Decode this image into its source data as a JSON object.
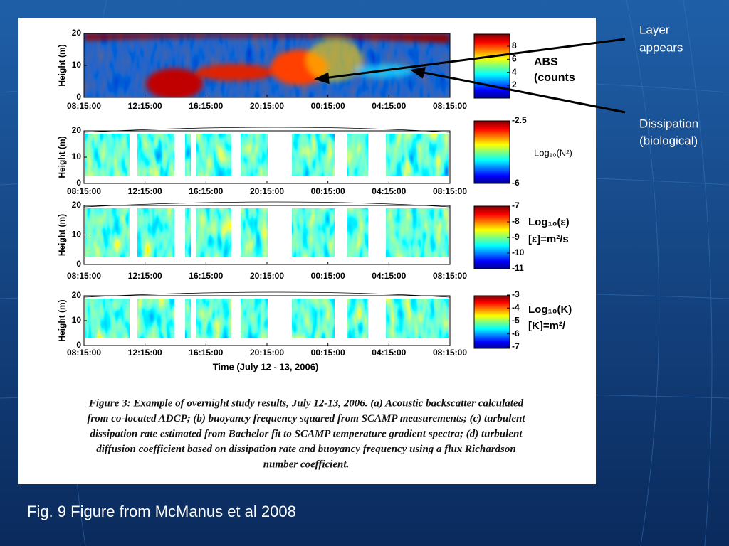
{
  "figure": {
    "panels": [
      {
        "ylabel": "Height (m)",
        "yticks": [
          0,
          10,
          20
        ],
        "xticks": [
          "08:15:00",
          "12:15:00",
          "16:15:00",
          "20:15:00",
          "00:15:00",
          "04:15:00",
          "08:15:00"
        ],
        "colorbar": {
          "ticks": [
            2,
            4,
            6,
            8
          ],
          "label": [
            "ABS",
            "(counts"
          ]
        }
      },
      {
        "ylabel": "Height (m)",
        "yticks": [
          0,
          10,
          20
        ],
        "xticks": [
          "08:15:00",
          "12:15:00",
          "16:15:00",
          "20:15:00",
          "00:15:00",
          "04:15:00",
          "08:15:00"
        ],
        "colorbar": {
          "ticks": [
            -6,
            -2.5
          ],
          "label": [
            "Log₁₀(N²)"
          ]
        }
      },
      {
        "ylabel": "Height (m)",
        "yticks": [
          0,
          10,
          20
        ],
        "xticks": [
          "08:15:00",
          "12:15:00",
          "16:15:00",
          "20:15:00",
          "00:15:00",
          "04:15:00",
          "08:15:00"
        ],
        "colorbar": {
          "ticks": [
            -11,
            -10,
            -9,
            -8,
            -7
          ],
          "label": [
            "Log₁₀(ε)",
            "[ε]=m²/s"
          ]
        }
      },
      {
        "ylabel": "Height (m)",
        "yticks": [
          0,
          10,
          20
        ],
        "xticks": [
          "08:15:00",
          "12:15:00",
          "16:15:00",
          "20:15:00",
          "00:15:00",
          "04:15:00",
          "08:15:00"
        ],
        "colorbar": {
          "ticks": [
            -7,
            -6,
            -5,
            -4,
            -3
          ],
          "label": [
            "Log₁₀(K)",
            "[K]=m²/"
          ]
        }
      }
    ],
    "xlabel": "Time (July 12 - 13, 2006)",
    "caption": [
      "Figure 3: Example of overnight study results, July 12-13, 2006.  (a) Acoustic backscatter calculated",
      "from co-located ADCP; (b) buoyancy frequency squared from SCAMP measurements; (c) turbulent",
      "dissipation rate estimated from Bachelor fit to SCAMP temperature gradient spectra; (d) turbulent",
      "diffusion coefficient based on dissipation rate and buoyancy frequency using a flux Richardson",
      "number coefficient."
    ]
  },
  "annotations": [
    {
      "lines": [
        "Layer",
        "appears"
      ]
    },
    {
      "lines": [
        "Dissipation",
        "(biological)"
      ]
    }
  ],
  "footer": "Fig. 9 Figure from McManus et al 2008"
}
